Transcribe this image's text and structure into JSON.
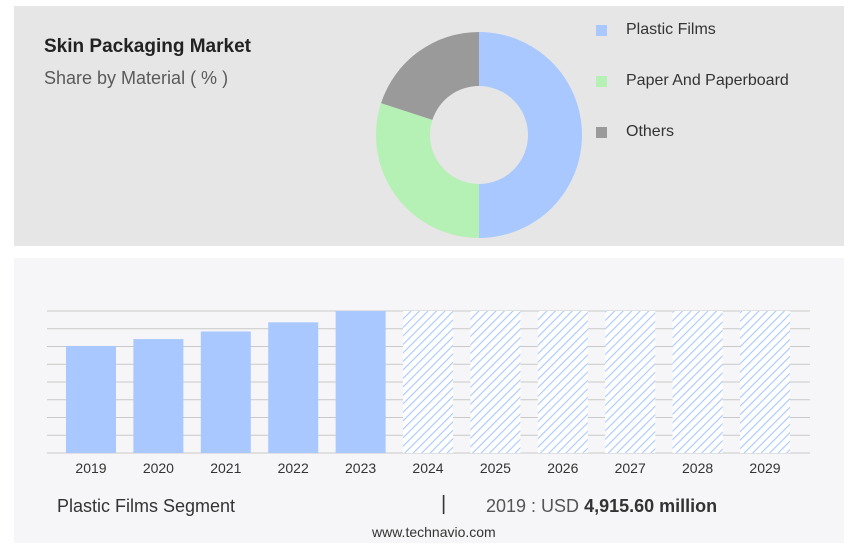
{
  "title": "Skin Packaging Market",
  "subtitle": "Share by Material ( % )",
  "chart_data": [
    {
      "type": "pie",
      "variant": "donut",
      "categories": [
        "Plastic Films",
        "Paper And Paperboard",
        "Others"
      ],
      "values": [
        50,
        30,
        20
      ],
      "colors": [
        "#a8c8ff",
        "#b5f0b5",
        "#9a9a9a"
      ],
      "legend_position": "right"
    },
    {
      "type": "bar",
      "categories": [
        "2019",
        "2020",
        "2021",
        "2022",
        "2023",
        "2024",
        "2025",
        "2026",
        "2027",
        "2028",
        "2029"
      ],
      "values": [
        4915.6,
        5230,
        5580,
        6000,
        6520,
        6520,
        6520,
        6520,
        6520,
        6520,
        6520
      ],
      "forecast_from": "2024",
      "bar_color": "#a8c8ff",
      "ylim": [
        0,
        6520
      ],
      "grid": true
    }
  ],
  "footer": {
    "segment": "Plastic Films Segment",
    "divider": "|",
    "prefix": "2019 : USD",
    "value": "4,915.60 million",
    "source": "www.technavio.com"
  }
}
